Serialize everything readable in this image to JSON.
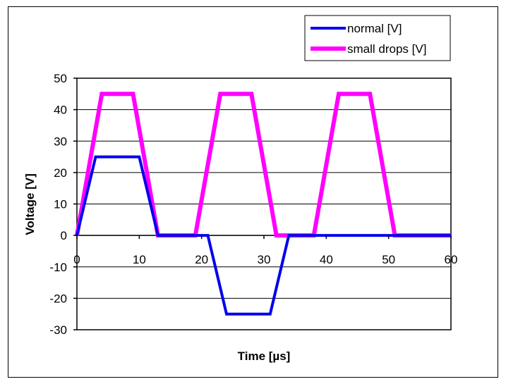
{
  "chart_data": {
    "type": "line",
    "title": "",
    "xlabel": "Time [µs]",
    "ylabel": "Voltage [V]",
    "xlim": [
      0,
      60
    ],
    "ylim": [
      -30,
      50
    ],
    "x_ticks": [
      0,
      10,
      20,
      30,
      40,
      50,
      60
    ],
    "y_ticks": [
      50,
      40,
      30,
      20,
      10,
      0,
      -10,
      -20,
      -30
    ],
    "grid": "horizontal",
    "legend_position": "top-right",
    "series": [
      {
        "name": "normal [V]",
        "color": "#0000ee",
        "x": [
          0,
          3,
          10,
          13,
          21,
          24,
          31,
          34,
          51,
          60
        ],
        "y": [
          0,
          25,
          25,
          0,
          0,
          -25,
          -25,
          0,
          0,
          0
        ]
      },
      {
        "name": "small drops [V]",
        "color": "#ff00ff",
        "x": [
          0,
          4,
          9,
          13,
          19,
          23,
          28,
          32,
          38,
          42,
          47,
          51,
          60
        ],
        "y": [
          0,
          45,
          45,
          0,
          0,
          45,
          45,
          0,
          0,
          45,
          45,
          0,
          0
        ]
      }
    ]
  }
}
